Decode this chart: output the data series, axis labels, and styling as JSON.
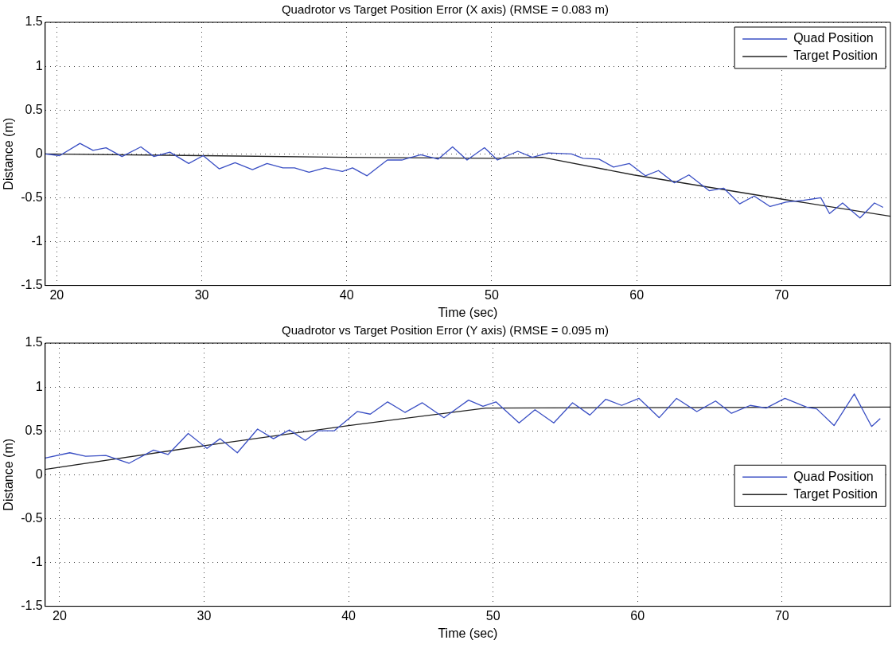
{
  "chart_data": [
    {
      "type": "line",
      "title": "Quadrotor vs Target Position Error (X axis) (RMSE = 0.083 m)",
      "xlabel": "Time (sec)",
      "ylabel": "Distance (m)",
      "xlim": [
        19.2,
        77.5
      ],
      "ylim": [
        -1.5,
        1.5
      ],
      "xticks": [
        20,
        30,
        40,
        50,
        60,
        70
      ],
      "yticks": [
        -1.5,
        -1,
        -0.5,
        0,
        0.5,
        1,
        1.5
      ],
      "grid": true,
      "legend": "top right",
      "marker": "none",
      "line_style": "solid",
      "series": [
        {
          "name": "Quad Position",
          "color": "#3a4fc4",
          "x": [
            19.2,
            20.2,
            21.6,
            22.5,
            23.4,
            24.5,
            25.8,
            26.7,
            27.8,
            29.1,
            30.1,
            31.2,
            32.3,
            33.5,
            34.5,
            35.6,
            36.4,
            37.4,
            38.5,
            39.7,
            40.4,
            41.4,
            42.8,
            43.8,
            45.1,
            46.3,
            47.3,
            48.3,
            49.5,
            50.4,
            51.8,
            52.8,
            53.9,
            55.5,
            56.3,
            57.4,
            58.4,
            59.5,
            60.6,
            61.5,
            62.6,
            63.6,
            65.0,
            66.0,
            67.1,
            68.1,
            69.2,
            70.3,
            71.5,
            72.7,
            73.3,
            74.2,
            75.4,
            76.4,
            77.0
          ],
          "values": [
            0,
            -0.02,
            0.12,
            0.04,
            0.07,
            -0.03,
            0.08,
            -0.03,
            0.02,
            -0.11,
            -0.02,
            -0.17,
            -0.1,
            -0.18,
            -0.11,
            -0.16,
            -0.16,
            -0.21,
            -0.16,
            -0.2,
            -0.16,
            -0.25,
            -0.07,
            -0.07,
            -0.01,
            -0.06,
            0.08,
            -0.07,
            0.07,
            -0.07,
            0.03,
            -0.04,
            0.01,
            0,
            -0.05,
            -0.06,
            -0.15,
            -0.11,
            -0.25,
            -0.19,
            -0.33,
            -0.24,
            -0.42,
            -0.39,
            -0.57,
            -0.48,
            -0.6,
            -0.55,
            -0.53,
            -0.5,
            -0.68,
            -0.56,
            -0.73,
            -0.56,
            -0.61
          ]
        },
        {
          "name": "Target Position",
          "color": "#222222",
          "x": [
            19.2,
            30,
            40,
            50,
            53.5,
            59.8,
            69.8,
            77.5
          ],
          "values": [
            0,
            -0.02,
            -0.04,
            -0.05,
            -0.04,
            -0.24,
            -0.51,
            -0.71
          ]
        }
      ]
    },
    {
      "type": "line",
      "title": "Quadrotor vs Target Position Error (Y axis) (RMSE = 0.095 m)",
      "xlabel": "Time (sec)",
      "ylabel": "Distance (m)",
      "xlim": [
        19,
        77.5
      ],
      "ylim": [
        -1.5,
        1.5
      ],
      "xticks": [
        20,
        30,
        40,
        50,
        60,
        70
      ],
      "yticks": [
        -1.5,
        -1,
        -0.5,
        0,
        0.5,
        1,
        1.5
      ],
      "grid": true,
      "legend": "right",
      "marker": "none",
      "line_style": "solid",
      "series": [
        {
          "name": "Quad Position",
          "color": "#3a4fc4",
          "x": [
            19.0,
            20.7,
            21.8,
            23.2,
            24.8,
            26.5,
            27.5,
            28.9,
            30.2,
            31.1,
            32.3,
            33.7,
            34.8,
            35.9,
            37.0,
            37.9,
            39.0,
            40.6,
            41.5,
            42.7,
            43.9,
            45.1,
            46.6,
            48.3,
            49.3,
            50.2,
            51.8,
            52.9,
            54.2,
            55.5,
            56.7,
            57.8,
            58.9,
            60.1,
            61.5,
            62.7,
            64.1,
            65.4,
            66.5,
            67.8,
            68.9,
            70.2,
            71.7,
            72.4,
            73.6,
            75.0,
            76.2,
            76.8
          ],
          "values": [
            0.19,
            0.25,
            0.21,
            0.22,
            0.13,
            0.28,
            0.23,
            0.47,
            0.3,
            0.41,
            0.25,
            0.52,
            0.41,
            0.51,
            0.39,
            0.5,
            0.5,
            0.72,
            0.69,
            0.83,
            0.71,
            0.82,
            0.65,
            0.85,
            0.78,
            0.83,
            0.59,
            0.74,
            0.59,
            0.82,
            0.68,
            0.86,
            0.79,
            0.87,
            0.65,
            0.87,
            0.72,
            0.84,
            0.7,
            0.79,
            0.76,
            0.87,
            0.77,
            0.75,
            0.56,
            0.92,
            0.55,
            0.64
          ]
        },
        {
          "name": "Target Position",
          "color": "#222222",
          "x": [
            19,
            30,
            40,
            49.5,
            77.5
          ],
          "values": [
            0.06,
            0.33,
            0.56,
            0.76,
            0.77
          ]
        }
      ]
    }
  ]
}
